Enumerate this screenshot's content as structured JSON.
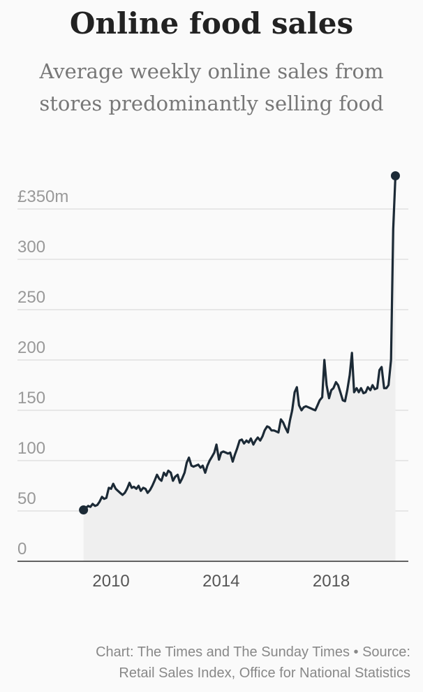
{
  "chart_data": {
    "type": "line",
    "title": "Online food sales",
    "subtitle": [
      "Average weekly online sales from",
      "stores predominantly selling food"
    ],
    "footer": [
      "Chart: The Times and The Sunday Times • Source:",
      "Retail Sales Index, Office for National Statistics"
    ],
    "color": "#1c2a36",
    "area_color": "#efefef",
    "grid": true,
    "xlim": [
      2006.6,
      2020.8
    ],
    "xticks": [
      2010,
      2014,
      2018
    ],
    "ylim": [
      0,
      400
    ],
    "yticks": [
      0,
      50,
      100,
      150,
      200,
      250,
      300,
      {
        "value": 350,
        "label": "£350m"
      }
    ],
    "x": [
      2009,
      2009.08,
      2009.17,
      2009.25,
      2009.33,
      2009.42,
      2009.5,
      2009.58,
      2009.67,
      2009.75,
      2009.83,
      2009.92,
      2010,
      2010.08,
      2010.17,
      2010.25,
      2010.33,
      2010.42,
      2010.5,
      2010.58,
      2010.67,
      2010.75,
      2010.83,
      2010.92,
      2011,
      2011.08,
      2011.17,
      2011.25,
      2011.33,
      2011.42,
      2011.5,
      2011.58,
      2011.67,
      2011.75,
      2011.83,
      2011.92,
      2012,
      2012.08,
      2012.17,
      2012.25,
      2012.33,
      2012.42,
      2012.5,
      2012.58,
      2012.67,
      2012.75,
      2012.83,
      2012.92,
      2013,
      2013.08,
      2013.17,
      2013.25,
      2013.33,
      2013.42,
      2013.5,
      2013.58,
      2013.67,
      2013.75,
      2013.83,
      2013.92,
      2014,
      2014.08,
      2014.17,
      2014.25,
      2014.33,
      2014.42,
      2014.5,
      2014.58,
      2014.67,
      2014.75,
      2014.83,
      2014.92,
      2015,
      2015.08,
      2015.17,
      2015.25,
      2015.33,
      2015.42,
      2015.5,
      2015.58,
      2015.67,
      2015.75,
      2015.83,
      2015.92,
      2016,
      2016.08,
      2016.17,
      2016.25,
      2016.33,
      2016.42,
      2016.5,
      2016.58,
      2016.67,
      2016.75,
      2016.83,
      2016.92,
      2017,
      2017.08,
      2017.17,
      2017.25,
      2017.33,
      2017.42,
      2017.5,
      2017.58,
      2017.67,
      2017.75,
      2017.83,
      2017.92,
      2018,
      2018.08,
      2018.17,
      2018.25,
      2018.33,
      2018.42,
      2018.5,
      2018.58,
      2018.67,
      2018.75,
      2018.83,
      2018.92,
      2019,
      2019.08,
      2019.17,
      2019.25,
      2019.33,
      2019.42,
      2019.5,
      2019.58,
      2019.67,
      2019.75,
      2019.83,
      2019.92,
      2020,
      2020.08,
      2020.17,
      2020.25,
      2020.33
    ],
    "values": [
      51,
      53,
      55,
      54,
      57,
      55,
      56,
      59,
      64,
      62,
      63,
      73,
      72,
      77,
      72,
      70,
      68,
      66,
      68,
      72,
      78,
      73,
      74,
      72,
      75,
      70,
      73,
      72,
      68,
      71,
      75,
      80,
      86,
      82,
      80,
      88,
      85,
      90,
      88,
      80,
      84,
      86,
      78,
      82,
      88,
      98,
      103,
      95,
      94,
      95,
      96,
      93,
      95,
      88,
      95,
      100,
      104,
      108,
      116,
      101,
      108,
      109,
      108,
      107,
      108,
      99,
      106,
      112,
      120,
      121,
      117,
      120,
      118,
      122,
      116,
      120,
      123,
      120,
      124,
      130,
      134,
      133,
      130,
      130,
      129,
      128,
      141,
      138,
      133,
      128,
      140,
      150,
      168,
      173,
      155,
      150,
      153,
      154,
      153,
      152,
      151,
      150,
      155,
      160,
      163,
      200,
      175,
      162,
      170,
      172,
      178,
      175,
      168,
      160,
      159,
      170,
      185,
      207,
      168,
      172,
      168,
      172,
      167,
      168,
      173,
      170,
      175,
      171,
      172,
      190,
      193,
      172,
      172,
      175,
      200,
      330,
      383
    ]
  }
}
